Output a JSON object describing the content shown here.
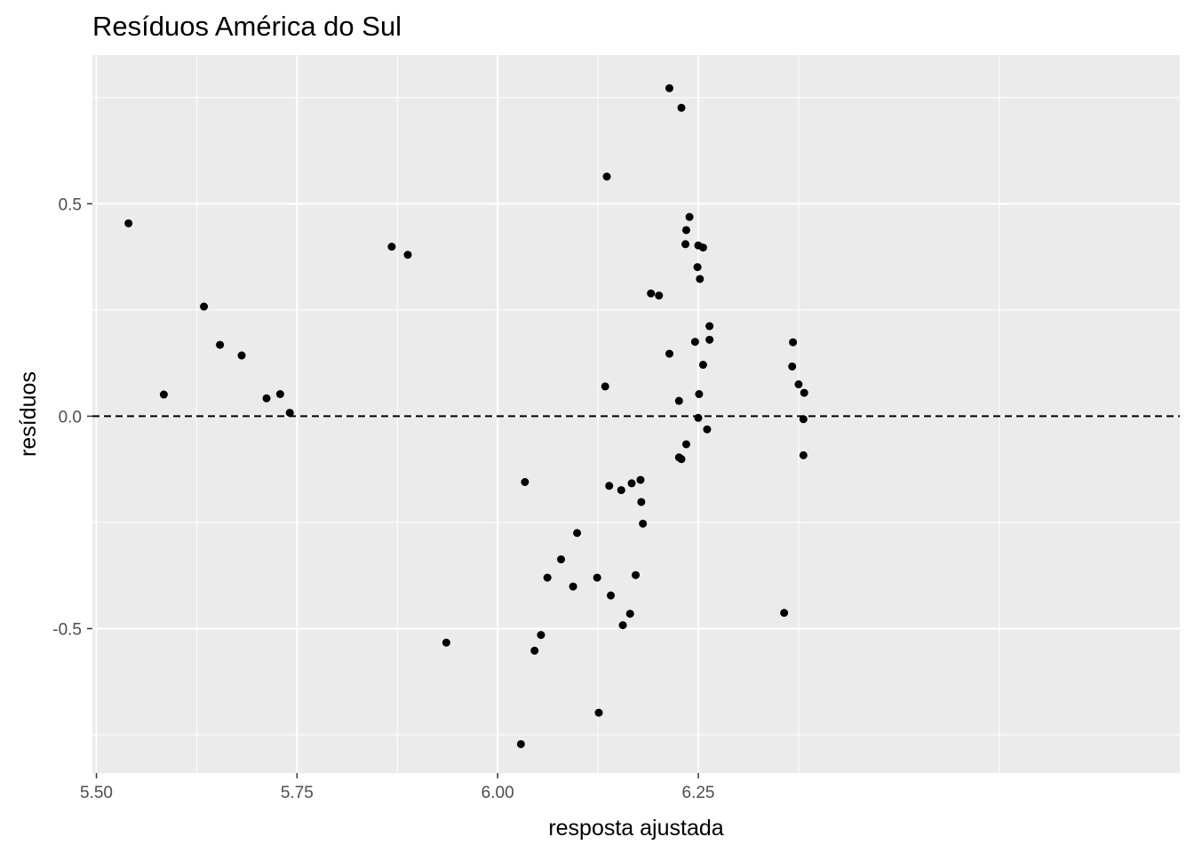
{
  "chart_data": {
    "type": "scatter",
    "title": "Resíduos América do Sul",
    "xlabel": "resposta ajustada",
    "ylabel": "resíduos",
    "xlim": [
      5.495,
      6.85
    ],
    "ylim": [
      -0.84,
      0.85
    ],
    "x_ticks": [
      5.5,
      5.75,
      6.0,
      6.25
    ],
    "x_tick_labels": [
      "5.50",
      "5.75",
      "6.00",
      "6.25"
    ],
    "y_ticks": [
      -0.5,
      0.0,
      0.5
    ],
    "y_tick_labels": [
      "-0.5",
      "0.0",
      "0.5"
    ],
    "grid": true,
    "background": "#ebebeb",
    "point_color": "#000000",
    "reference_line": {
      "y": 0.0,
      "style": "dashed",
      "color": "#000000"
    },
    "points": [
      {
        "x": 5.54,
        "y": 0.454
      },
      {
        "x": 5.584,
        "y": 0.051
      },
      {
        "x": 5.634,
        "y": 0.258
      },
      {
        "x": 5.654,
        "y": 0.168
      },
      {
        "x": 5.681,
        "y": 0.143
      },
      {
        "x": 5.712,
        "y": 0.042
      },
      {
        "x": 5.729,
        "y": 0.052
      },
      {
        "x": 5.741,
        "y": 0.008
      },
      {
        "x": 5.868,
        "y": 0.399
      },
      {
        "x": 5.888,
        "y": 0.38
      },
      {
        "x": 5.936,
        "y": -0.533
      },
      {
        "x": 6.029,
        "y": -0.772
      },
      {
        "x": 6.034,
        "y": -0.155
      },
      {
        "x": 6.046,
        "y": -0.552
      },
      {
        "x": 6.054,
        "y": -0.515
      },
      {
        "x": 6.062,
        "y": -0.38
      },
      {
        "x": 6.079,
        "y": -0.337
      },
      {
        "x": 6.094,
        "y": -0.401
      },
      {
        "x": 6.099,
        "y": -0.275
      },
      {
        "x": 6.124,
        "y": -0.38
      },
      {
        "x": 6.126,
        "y": -0.698
      },
      {
        "x": 6.134,
        "y": 0.07
      },
      {
        "x": 6.136,
        "y": 0.564
      },
      {
        "x": 6.139,
        "y": -0.164
      },
      {
        "x": 6.141,
        "y": -0.422
      },
      {
        "x": 6.154,
        "y": -0.174
      },
      {
        "x": 6.156,
        "y": -0.492
      },
      {
        "x": 6.165,
        "y": -0.465
      },
      {
        "x": 6.167,
        "y": -0.158
      },
      {
        "x": 6.172,
        "y": -0.374
      },
      {
        "x": 6.178,
        "y": -0.15
      },
      {
        "x": 6.179,
        "y": -0.202
      },
      {
        "x": 6.181,
        "y": -0.253
      },
      {
        "x": 6.191,
        "y": 0.289
      },
      {
        "x": 6.201,
        "y": 0.284
      },
      {
        "x": 6.214,
        "y": 0.147
      },
      {
        "x": 6.214,
        "y": 0.772
      },
      {
        "x": 6.226,
        "y": 0.036
      },
      {
        "x": 6.226,
        "y": -0.097
      },
      {
        "x": 6.229,
        "y": -0.101
      },
      {
        "x": 6.229,
        "y": 0.726
      },
      {
        "x": 6.234,
        "y": 0.405
      },
      {
        "x": 6.235,
        "y": 0.438
      },
      {
        "x": 6.235,
        "y": -0.066
      },
      {
        "x": 6.239,
        "y": 0.469
      },
      {
        "x": 6.246,
        "y": 0.175
      },
      {
        "x": 6.249,
        "y": 0.351
      },
      {
        "x": 6.25,
        "y": 0.402
      },
      {
        "x": 6.25,
        "y": -0.004
      },
      {
        "x": 6.251,
        "y": 0.052
      },
      {
        "x": 6.252,
        "y": 0.323
      },
      {
        "x": 6.256,
        "y": 0.397
      },
      {
        "x": 6.256,
        "y": 0.121
      },
      {
        "x": 6.261,
        "y": -0.031
      },
      {
        "x": 6.264,
        "y": 0.212
      },
      {
        "x": 6.264,
        "y": 0.18
      },
      {
        "x": 6.357,
        "y": -0.463
      },
      {
        "x": 6.367,
        "y": 0.117
      },
      {
        "x": 6.368,
        "y": 0.174
      },
      {
        "x": 6.375,
        "y": 0.075
      },
      {
        "x": 6.381,
        "y": -0.007
      },
      {
        "x": 6.381,
        "y": -0.092
      },
      {
        "x": 6.382,
        "y": 0.055
      }
    ]
  }
}
